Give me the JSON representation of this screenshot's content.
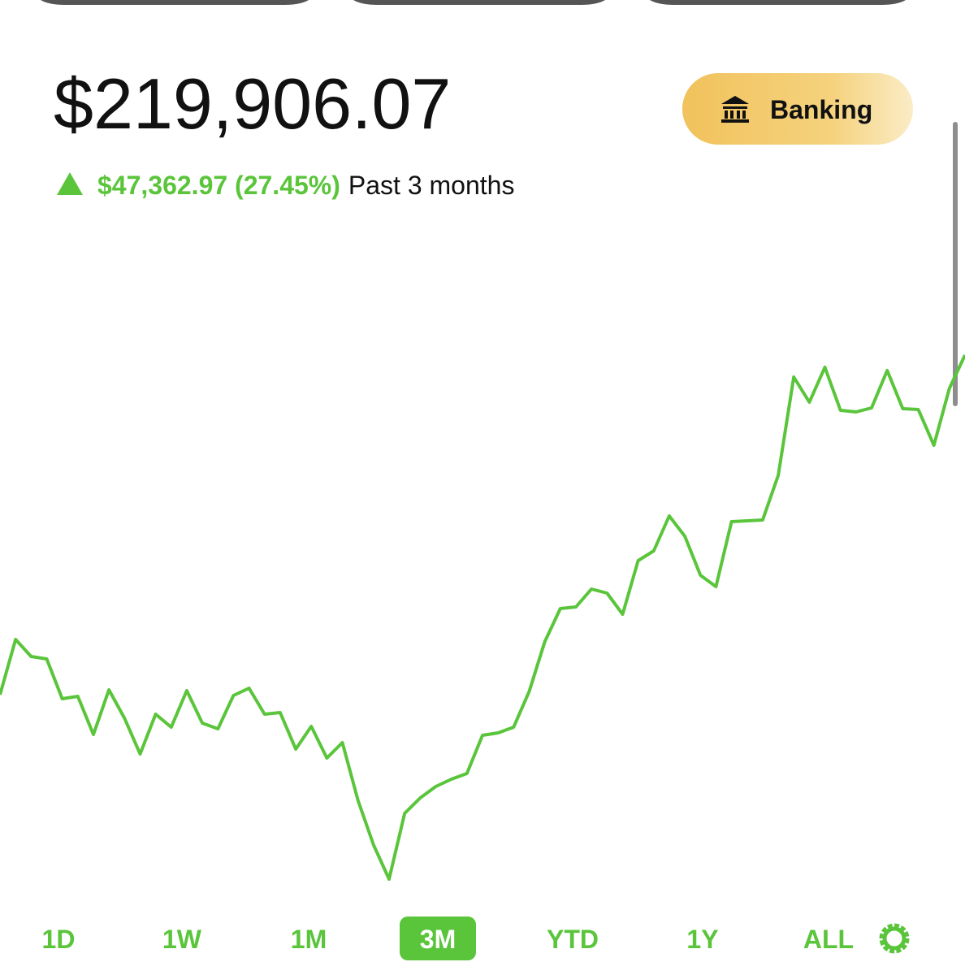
{
  "header": {
    "balance": "$219,906.07",
    "change": "$47,362.97 (27.45%)",
    "period": "Past 3 months",
    "button": "Banking"
  },
  "chart_data": {
    "type": "line",
    "color": "#5ac53b",
    "ylim": [
      145000,
      221000
    ],
    "values": [
      172543.1,
      180247,
      177868,
      177528,
      171976,
      172316,
      166991,
      173223,
      169257,
      164272,
      169824,
      168011,
      173110,
      168577,
      167784,
      172430,
      173449,
      169824,
      170050,
      164952,
      168124,
      163706,
      165858,
      157814,
      151582,
      146824,
      156001,
      158154,
      159740,
      160760,
      161553,
      166878,
      167218,
      168011,
      172996,
      179908,
      184553,
      184779,
      187272,
      186706,
      183760,
      191238,
      192597,
      197469,
      194637,
      189198,
      187612,
      196676,
      196789,
      196903,
      203134,
      216843,
      213331,
      218203,
      212198,
      211971,
      212538,
      217750,
      212425,
      212311,
      207326,
      215257,
      219906.07
    ]
  },
  "ranges": {
    "options": [
      "1D",
      "1W",
      "1M",
      "3M",
      "YTD",
      "1Y",
      "ALL"
    ],
    "selected": 3
  }
}
